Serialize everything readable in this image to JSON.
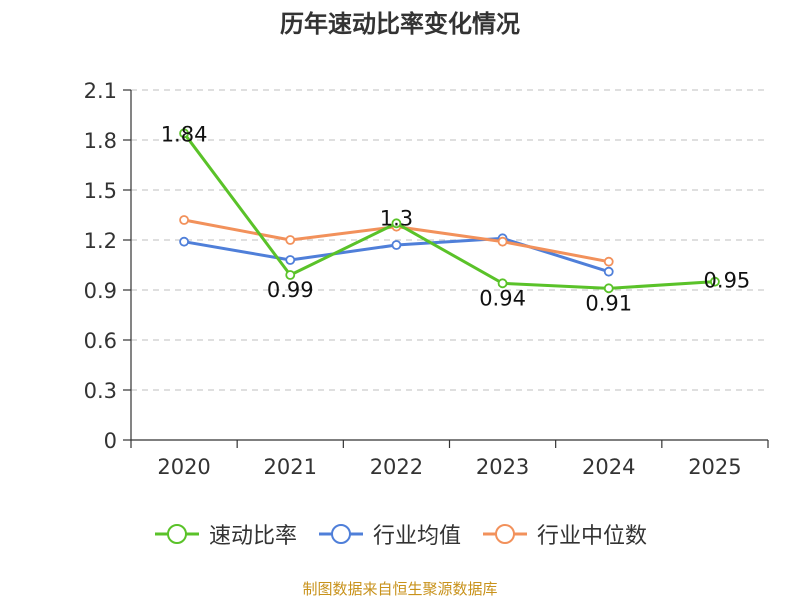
{
  "chart_data": {
    "type": "line",
    "title": "历年速动比率变化情况",
    "categories": [
      "2020",
      "2021",
      "2022",
      "2023",
      "2024",
      "2025"
    ],
    "y_ticks": [
      "0",
      "0.3",
      "0.6",
      "0.9",
      "1.2",
      "1.5",
      "1.8",
      "2.1"
    ],
    "ylim": [
      0,
      2.1
    ],
    "grid": true,
    "legend_position": "bottom-center",
    "series": [
      {
        "name": "速动比率",
        "color": "#5ac229",
        "values": [
          1.84,
          0.99,
          1.3,
          0.94,
          0.91,
          0.95
        ],
        "labels": [
          "1.84",
          "0.99",
          "1.3",
          "0.94",
          "0.91",
          "0.95"
        ]
      },
      {
        "name": "行业均值",
        "color": "#4f7fd9",
        "values": [
          1.19,
          1.08,
          1.17,
          1.21,
          1.01,
          null
        ]
      },
      {
        "name": "行业中位数",
        "color": "#f2915b",
        "values": [
          1.32,
          1.2,
          1.28,
          1.19,
          1.07,
          null
        ]
      }
    ]
  },
  "source": "制图数据来自恒生聚源数据库"
}
